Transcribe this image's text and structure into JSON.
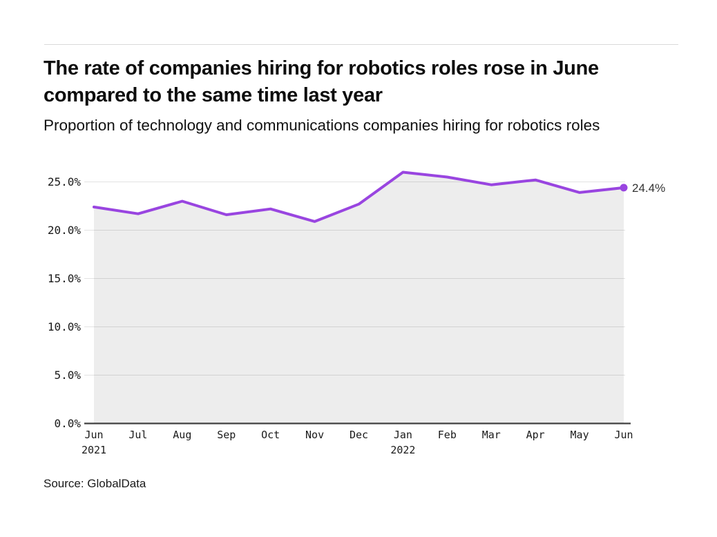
{
  "page": {
    "title": "The rate of companies hiring for robotics roles rose in June compared to the same time last year",
    "subtitle": "Proportion of technology and communications companies hiring for robotics roles",
    "source": "Source: GlobalData"
  },
  "chart_data": {
    "type": "area",
    "title": "Proportion of technology and communications companies hiring for robotics roles",
    "categories": [
      {
        "month": "Jun",
        "year": "2021"
      },
      {
        "month": "Jul"
      },
      {
        "month": "Aug"
      },
      {
        "month": "Sep"
      },
      {
        "month": "Oct"
      },
      {
        "month": "Nov"
      },
      {
        "month": "Dec"
      },
      {
        "month": "Jan",
        "year": "2022"
      },
      {
        "month": "Feb"
      },
      {
        "month": "Mar"
      },
      {
        "month": "Apr"
      },
      {
        "month": "May"
      },
      {
        "month": "Jun"
      }
    ],
    "values": [
      22.4,
      21.7,
      23.0,
      21.6,
      22.2,
      20.9,
      22.7,
      26.0,
      25.5,
      24.7,
      25.2,
      23.9,
      24.4
    ],
    "end_label": "24.4%",
    "y_ticks": [
      0,
      5,
      10,
      15,
      20,
      25
    ],
    "y_tick_labels": [
      "0.0%",
      "5.0%",
      "10.0%",
      "15.0%",
      "20.0%",
      "25.0%"
    ],
    "ylim": [
      0,
      26.8
    ],
    "xlabel": "",
    "ylabel": "",
    "grid": true,
    "legend_position": "none",
    "colors": {
      "line": "#9945e0",
      "marker": "#9945e0",
      "fill": "rgba(0,0,0,0.072)",
      "grid": "#e2e2e2",
      "axis": "#404040",
      "tick_text": "#1a1a1a",
      "annotation_text": "#333333"
    }
  }
}
